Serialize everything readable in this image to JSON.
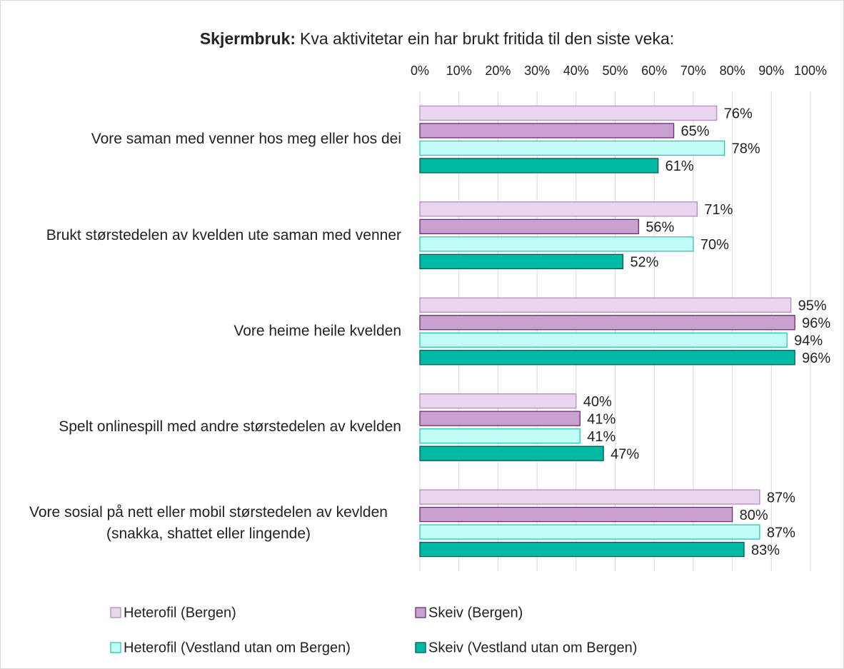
{
  "chart_data": {
    "type": "hbar",
    "title_lead": "Skjermbruk:",
    "title": "Kva aktivitetar ein har brukt fritida til den siste veka:",
    "categories": [
      "Vore saman med venner hos meg eller hos dei",
      "Brukt størstedelen av kvelden ute saman med venner",
      "Vore heime heile kvelden",
      "Spelt onlinespill med andre størstedelen av kvelden",
      "Vore sosial på nett eller mobil størstedelen av kevlden (snakka, shattet eller lingende)"
    ],
    "series": [
      {
        "name": "Heterofil (Bergen)",
        "color": "#e9d6ee",
        "edge": "#b58cc0",
        "values": [
          76,
          71,
          95,
          40,
          87
        ],
        "value_labels": [
          "76%",
          "71%",
          "95%",
          "40%",
          "87%"
        ]
      },
      {
        "name": "Skeiv (Bergen)",
        "color": "#c9a1d1",
        "edge": "#6b2d7c",
        "values": [
          65,
          56,
          96,
          41,
          80
        ],
        "value_labels": [
          "65%",
          "56%",
          "96%",
          "41%",
          "80%"
        ]
      },
      {
        "name": "Heterofil (Vestland utan om Bergen)",
        "color": "#c2fcf7",
        "edge": "#2ec4b6",
        "values": [
          78,
          70,
          94,
          41,
          87
        ],
        "value_labels": [
          "78%",
          "70%",
          "94%",
          "41%",
          "87%"
        ]
      },
      {
        "name": "Skeiv (Vestland utan om Bergen)",
        "color": "#00baa6",
        "edge": "#005a4f",
        "values": [
          61,
          52,
          96,
          47,
          83
        ],
        "value_labels": [
          "61%",
          "52%",
          "96%",
          "47%",
          "83%"
        ]
      }
    ],
    "xlim": [
      0,
      100
    ],
    "xticks": [
      {
        "value": 0,
        "label": "0%"
      },
      {
        "value": 10,
        "label": "10%"
      },
      {
        "value": 20,
        "label": "20%"
      },
      {
        "value": 30,
        "label": "30%"
      },
      {
        "value": 40,
        "label": "40%"
      },
      {
        "value": 50,
        "label": "50%"
      },
      {
        "value": 60,
        "label": "60%"
      },
      {
        "value": 70,
        "label": "70%"
      },
      {
        "value": 80,
        "label": "80%"
      },
      {
        "value": 90,
        "label": "90%"
      },
      {
        "value": 100,
        "label": "100%"
      }
    ],
    "grid": true,
    "legend": "bottom"
  }
}
